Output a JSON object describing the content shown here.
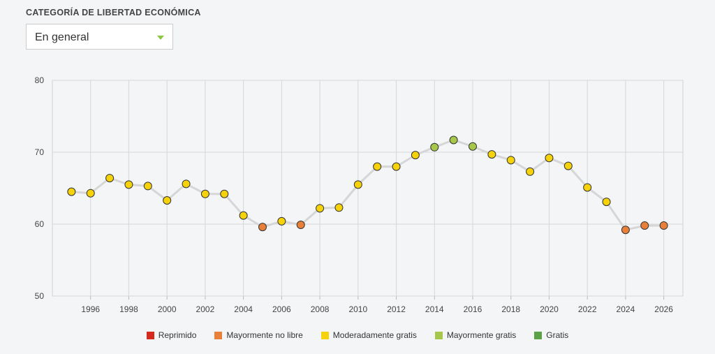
{
  "filter": {
    "title": "CATEGORÍA DE LIBERTAD ECONÓMICA",
    "selected": "En general"
  },
  "categories_legend": [
    {
      "key": "repressed",
      "label": "Reprimido",
      "color": "#d52b1e"
    },
    {
      "key": "mostly_unfree",
      "label": "Mayormente no libre",
      "color": "#e8803a"
    },
    {
      "key": "moderately_free",
      "label": "Moderadamente gratis",
      "color": "#f5d20a"
    },
    {
      "key": "mostly_free",
      "label": "Mayormente gratis",
      "color": "#a6c74a"
    },
    {
      "key": "free",
      "label": "Gratis",
      "color": "#5ba246"
    }
  ],
  "chart_data": {
    "type": "line",
    "title": "",
    "xlabel": "",
    "ylabel": "",
    "xlim": [
      1994,
      2027
    ],
    "ylim": [
      50,
      80
    ],
    "xticks": [
      "1996",
      "1998",
      "2000",
      "2002",
      "2004",
      "2006",
      "2008",
      "2010",
      "2012",
      "2014",
      "2016",
      "2018",
      "2020",
      "2022",
      "2024",
      "2026"
    ],
    "yticks": [
      "50",
      "60",
      "70",
      "80"
    ],
    "grid": true,
    "legend_position": "bottom",
    "line_color": "#d6d6d6",
    "points": [
      {
        "x": 1995,
        "y": 64.5,
        "category": "moderately_free"
      },
      {
        "x": 1996,
        "y": 64.3,
        "category": "moderately_free"
      },
      {
        "x": 1997,
        "y": 66.4,
        "category": "moderately_free"
      },
      {
        "x": 1998,
        "y": 65.5,
        "category": "moderately_free"
      },
      {
        "x": 1999,
        "y": 65.3,
        "category": "moderately_free"
      },
      {
        "x": 2000,
        "y": 63.3,
        "category": "moderately_free"
      },
      {
        "x": 2001,
        "y": 65.6,
        "category": "moderately_free"
      },
      {
        "x": 2002,
        "y": 64.2,
        "category": "moderately_free"
      },
      {
        "x": 2003,
        "y": 64.2,
        "category": "moderately_free"
      },
      {
        "x": 2004,
        "y": 61.2,
        "category": "moderately_free"
      },
      {
        "x": 2005,
        "y": 59.6,
        "category": "mostly_unfree"
      },
      {
        "x": 2006,
        "y": 60.4,
        "category": "moderately_free"
      },
      {
        "x": 2007,
        "y": 59.9,
        "category": "mostly_unfree"
      },
      {
        "x": 2008,
        "y": 62.2,
        "category": "moderately_free"
      },
      {
        "x": 2009,
        "y": 62.3,
        "category": "moderately_free"
      },
      {
        "x": 2010,
        "y": 65.5,
        "category": "moderately_free"
      },
      {
        "x": 2011,
        "y": 68.0,
        "category": "moderately_free"
      },
      {
        "x": 2012,
        "y": 68.0,
        "category": "moderately_free"
      },
      {
        "x": 2013,
        "y": 69.6,
        "category": "moderately_free"
      },
      {
        "x": 2014,
        "y": 70.7,
        "category": "mostly_free"
      },
      {
        "x": 2015,
        "y": 71.7,
        "category": "mostly_free"
      },
      {
        "x": 2016,
        "y": 70.8,
        "category": "mostly_free"
      },
      {
        "x": 2017,
        "y": 69.7,
        "category": "moderately_free"
      },
      {
        "x": 2018,
        "y": 68.9,
        "category": "moderately_free"
      },
      {
        "x": 2019,
        "y": 67.3,
        "category": "moderately_free"
      },
      {
        "x": 2020,
        "y": 69.2,
        "category": "moderately_free"
      },
      {
        "x": 2021,
        "y": 68.1,
        "category": "moderately_free"
      },
      {
        "x": 2022,
        "y": 65.1,
        "category": "moderately_free"
      },
      {
        "x": 2023,
        "y": 63.1,
        "category": "moderately_free"
      },
      {
        "x": 2024,
        "y": 59.2,
        "category": "mostly_unfree"
      },
      {
        "x": 2025,
        "y": 59.8,
        "category": "mostly_unfree"
      },
      {
        "x": 2026,
        "y": 59.8,
        "category": "mostly_unfree"
      }
    ]
  }
}
